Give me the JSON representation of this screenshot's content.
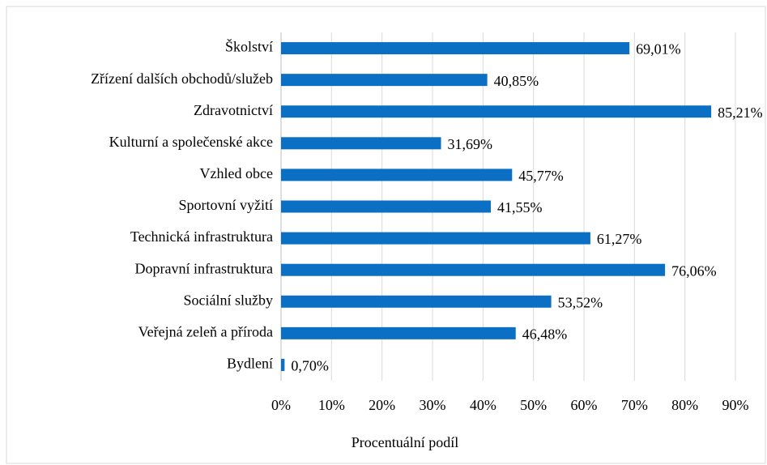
{
  "chart_data": {
    "type": "bar",
    "orientation": "horizontal",
    "x_label": "Procentuální podíl",
    "categories": [
      "Školství",
      "Zřízení dalších obchodů/služeb",
      "Zdravotnictví",
      "Kulturní a společenské akce",
      "Vzhled obce",
      "Sportovní vyžití",
      "Technická infrastruktura",
      "Dopravní infrastruktura",
      "Sociální služby",
      "Veřejná zeleň a příroda",
      "Bydlení"
    ],
    "values": [
      69.01,
      40.85,
      85.21,
      31.69,
      45.77,
      41.55,
      61.27,
      76.06,
      53.52,
      46.48,
      0.7
    ],
    "value_labels": [
      "69,01%",
      "40,85%",
      "85,21%",
      "31,69%",
      "45,77%",
      "41,55%",
      "61,27%",
      "76,06%",
      "53,52%",
      "46,48%",
      "0,70%"
    ],
    "color": "#0b6fc4",
    "xlim": [
      0,
      90
    ],
    "xticks": [
      {
        "value": 0,
        "label": "0%"
      },
      {
        "value": 10,
        "label": "10%"
      },
      {
        "value": 20,
        "label": "20%"
      },
      {
        "value": 30,
        "label": "30%"
      },
      {
        "value": 40,
        "label": "40%"
      },
      {
        "value": 50,
        "label": "50%"
      },
      {
        "value": 60,
        "label": "60%"
      },
      {
        "value": 70,
        "label": "70%"
      },
      {
        "value": 80,
        "label": "80%"
      },
      {
        "value": 90,
        "label": "90%"
      }
    ],
    "grid": true
  }
}
